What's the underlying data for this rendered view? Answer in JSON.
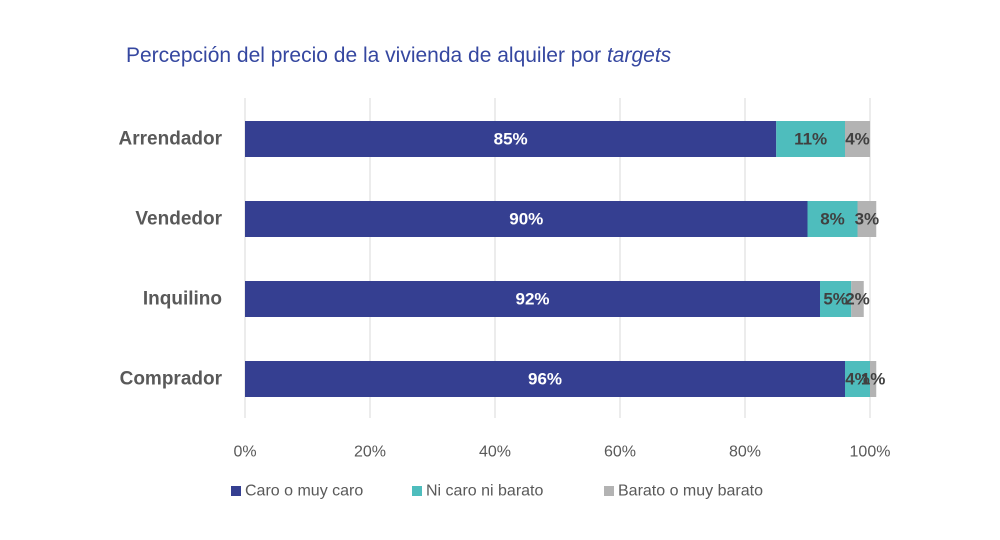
{
  "chart_data": {
    "type": "bar",
    "orientation": "horizontal",
    "stacked": true,
    "title": {
      "main": "Percepción del precio de la vivienda de alquiler por ",
      "emphasis": "targets"
    },
    "categories": [
      "Arrendador",
      "Vendedor",
      "Inquilino",
      "Comprador"
    ],
    "series": [
      {
        "name": "Caro o muy caro",
        "color": "#353f91",
        "values": [
          85,
          90,
          92,
          96
        ],
        "labels": [
          "85%",
          "90%",
          "92%",
          "96%"
        ]
      },
      {
        "name": "Ni caro ni barato",
        "color": "#4ebdbd",
        "values": [
          11,
          8,
          5,
          4
        ],
        "labels": [
          "11%",
          "8%",
          "5%",
          "4%"
        ]
      },
      {
        "name": "Barato o muy barato",
        "color": "#b3b3b3",
        "values": [
          4,
          3,
          2,
          1
        ],
        "labels": [
          "4%",
          "3%",
          "2%",
          "1%"
        ]
      }
    ],
    "x_ticks": [
      "0%",
      "20%",
      "40%",
      "60%",
      "80%",
      "100%"
    ],
    "xlim": [
      0,
      100
    ],
    "grid": true,
    "legend_position": "bottom"
  }
}
